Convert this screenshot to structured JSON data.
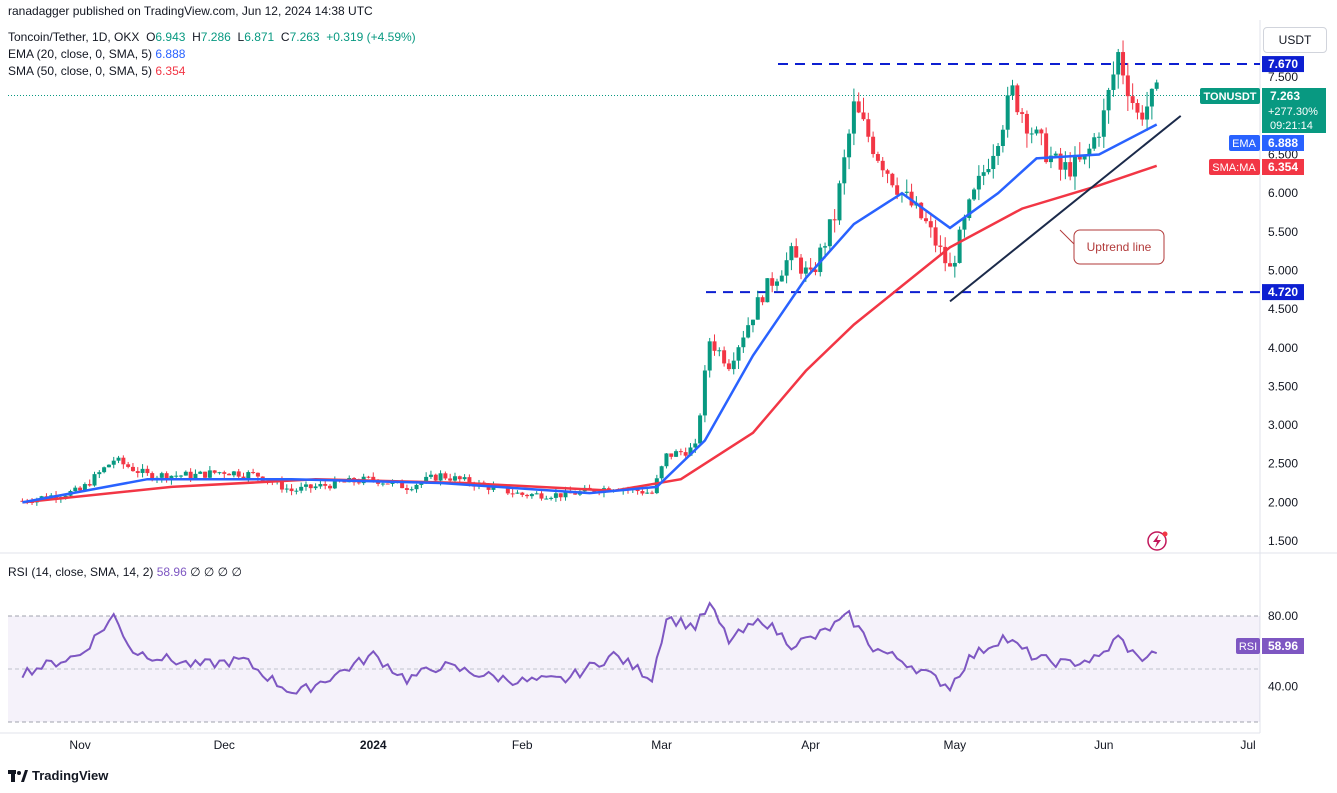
{
  "header": {
    "publisher": "ranadagger published on TradingView.com, Jun 12, 2024 14:38 UTC",
    "symbol": "Toncoin/Tether, 1D, OKX",
    "open_label": "O",
    "open": "6.943",
    "high_label": "H",
    "high": "7.286",
    "low_label": "L",
    "low": "6.871",
    "close_label": "C",
    "close": "7.263",
    "change": "+0.319 (+4.59%)",
    "ema_label": "EMA (20, close, 0, SMA, 5)",
    "ema_value": "6.888",
    "sma_label": "SMA (50, close, 0, SMA, 5)",
    "sma_value": "6.354",
    "rsi_label": "RSI (14, close, SMA, 14, 2)",
    "rsi_value": "58.96",
    "rsi_extra": "∅ ∅ ∅ ∅"
  },
  "currency_button": "USDT",
  "footer": {
    "brand": "TradingView"
  },
  "colors": {
    "up": "#089981",
    "down": "#f23645",
    "ema": "#2962ff",
    "sma": "#f23645",
    "rsi": "#7e57c2",
    "level": "#0d1fd1",
    "trend": "#1b2a4a"
  },
  "price_tags": {
    "ticker": "TONUSDT",
    "last": "7.263",
    "change_pct": "+277.30%",
    "countdown": "09:21:14",
    "ema_tag": "EMA",
    "ema_val": "6.888",
    "sma_tag": "SMA:MA",
    "sma_val": "6.354",
    "level_top": "7.670",
    "level_bottom": "4.720",
    "rsi_tag": "RSI",
    "rsi_val": "58.96"
  },
  "annotation": {
    "text": "Uptrend line"
  },
  "chart_data": {
    "type": "candlestick",
    "symbol": "Toncoin/Tether",
    "interval": "1D",
    "price_axis_ticks": [
      1.5,
      2.0,
      2.5,
      3.0,
      3.5,
      4.0,
      4.5,
      5.0,
      5.5,
      6.0,
      6.5,
      7.0,
      7.5
    ],
    "price_axis_labels": [
      "1.500",
      "2.000",
      "2.500",
      "3.000",
      "3.500",
      "4.000",
      "4.500",
      "5.000",
      "5.500",
      "6.000",
      "6.500",
      "7.000",
      "7.500"
    ],
    "time_axis_labels": [
      "Nov",
      "Dec",
      "2024",
      "Feb",
      "Mar",
      "Apr",
      "May",
      "Jun",
      "Jul"
    ],
    "horizontal_levels": [
      7.67,
      4.72
    ],
    "price_points_approx": [
      [
        "2023-10-20",
        2.02
      ],
      [
        "2023-11-01",
        2.15
      ],
      [
        "2023-11-08",
        2.55
      ],
      [
        "2023-11-15",
        2.35
      ],
      [
        "2023-11-25",
        2.35
      ],
      [
        "2023-12-01",
        2.4
      ],
      [
        "2023-12-08",
        2.35
      ],
      [
        "2023-12-15",
        2.15
      ],
      [
        "2023-12-25",
        2.25
      ],
      [
        "2024-01-01",
        2.3
      ],
      [
        "2024-01-08",
        2.2
      ],
      [
        "2024-01-15",
        2.35
      ],
      [
        "2024-01-25",
        2.2
      ],
      [
        "2024-02-01",
        2.1
      ],
      [
        "2024-02-10",
        2.1
      ],
      [
        "2024-02-20",
        2.2
      ],
      [
        "2024-02-28",
        2.12
      ],
      [
        "2024-03-02",
        2.6
      ],
      [
        "2024-03-08",
        2.7
      ],
      [
        "2024-03-11",
        4.1
      ],
      [
        "2024-03-15",
        3.8
      ],
      [
        "2024-03-22",
        4.7
      ],
      [
        "2024-03-28",
        5.2
      ],
      [
        "2024-04-01",
        4.9
      ],
      [
        "2024-04-06",
        5.7
      ],
      [
        "2024-04-10",
        7.1
      ],
      [
        "2024-04-15",
        6.5
      ],
      [
        "2024-04-20",
        6.0
      ],
      [
        "2024-04-25",
        5.6
      ],
      [
        "2024-04-30",
        5.0
      ],
      [
        "2024-05-04",
        5.8
      ],
      [
        "2024-05-09",
        6.6
      ],
      [
        "2024-05-13",
        7.3
      ],
      [
        "2024-05-18",
        6.7
      ],
      [
        "2024-05-23",
        6.3
      ],
      [
        "2024-05-28",
        6.4
      ],
      [
        "2024-06-01",
        7.0
      ],
      [
        "2024-06-04",
        7.8
      ],
      [
        "2024-06-08",
        7.0
      ],
      [
        "2024-06-12",
        7.263
      ]
    ],
    "ema_points_approx": [
      [
        "2023-10-20",
        2.0
      ],
      [
        "2023-11-15",
        2.3
      ],
      [
        "2023-12-15",
        2.3
      ],
      [
        "2024-01-15",
        2.25
      ],
      [
        "2024-02-15",
        2.12
      ],
      [
        "2024-02-29",
        2.2
      ],
      [
        "2024-03-10",
        2.8
      ],
      [
        "2024-03-20",
        3.9
      ],
      [
        "2024-03-31",
        4.9
      ],
      [
        "2024-04-10",
        5.6
      ],
      [
        "2024-04-20",
        6.0
      ],
      [
        "2024-04-30",
        5.55
      ],
      [
        "2024-05-10",
        6.0
      ],
      [
        "2024-05-18",
        6.45
      ],
      [
        "2024-05-31",
        6.5
      ],
      [
        "2024-06-12",
        6.888
      ]
    ],
    "sma_points_approx": [
      [
        "2023-10-20",
        2.0
      ],
      [
        "2023-11-20",
        2.2
      ],
      [
        "2023-12-20",
        2.3
      ],
      [
        "2024-01-20",
        2.25
      ],
      [
        "2024-02-20",
        2.15
      ],
      [
        "2024-03-05",
        2.3
      ],
      [
        "2024-03-20",
        2.9
      ],
      [
        "2024-03-31",
        3.7
      ],
      [
        "2024-04-10",
        4.3
      ],
      [
        "2024-04-20",
        4.8
      ],
      [
        "2024-04-30",
        5.3
      ],
      [
        "2024-05-15",
        5.8
      ],
      [
        "2024-05-31",
        6.1
      ],
      [
        "2024-06-12",
        6.354
      ]
    ],
    "trend_line": [
      [
        "2024-04-30",
        4.6
      ],
      [
        "2024-06-17",
        7.0
      ]
    ],
    "rsi": {
      "axis_ticks": [
        40,
        60,
        80
      ],
      "axis_labels": [
        "40.00",
        "",
        "80.00"
      ],
      "points_approx": [
        [
          "2023-10-20",
          48
        ],
        [
          "2023-11-01",
          58
        ],
        [
          "2023-11-08",
          80
        ],
        [
          "2023-11-12",
          60
        ],
        [
          "2023-11-25",
          52
        ],
        [
          "2023-12-05",
          55
        ],
        [
          "2023-12-12",
          42
        ],
        [
          "2023-12-16",
          36
        ],
        [
          "2023-12-25",
          48
        ],
        [
          "2024-01-01",
          58
        ],
        [
          "2024-01-08",
          44
        ],
        [
          "2024-01-15",
          52
        ],
        [
          "2024-01-25",
          46
        ],
        [
          "2024-02-01",
          43
        ],
        [
          "2024-02-10",
          44
        ],
        [
          "2024-02-20",
          58
        ],
        [
          "2024-02-28",
          45
        ],
        [
          "2024-03-02",
          79
        ],
        [
          "2024-03-08",
          74
        ],
        [
          "2024-03-11",
          86
        ],
        [
          "2024-03-15",
          66
        ],
        [
          "2024-03-22",
          78
        ],
        [
          "2024-03-28",
          64
        ],
        [
          "2024-04-02",
          68
        ],
        [
          "2024-04-09",
          80
        ],
        [
          "2024-04-14",
          62
        ],
        [
          "2024-04-20",
          55
        ],
        [
          "2024-04-26",
          46
        ],
        [
          "2024-04-30",
          40
        ],
        [
          "2024-05-04",
          56
        ],
        [
          "2024-05-11",
          68
        ],
        [
          "2024-05-18",
          56
        ],
        [
          "2024-05-24",
          53
        ],
        [
          "2024-05-31",
          56
        ],
        [
          "2024-06-04",
          68
        ],
        [
          "2024-06-08",
          56
        ],
        [
          "2024-06-12",
          58.96
        ]
      ]
    }
  }
}
